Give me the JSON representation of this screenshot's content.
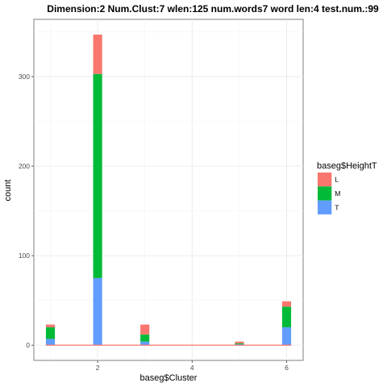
{
  "chart_data": {
    "type": "bar",
    "stacked": true,
    "title": "Dimension:2  Num.Clust:7  wlen:125  num.words7  word len:4  test.num.:99",
    "xlabel": "baseg$Cluster",
    "ylabel": "count",
    "xlim": [
      0.65,
      6.35
    ],
    "ylim": [
      -17,
      364
    ],
    "x_ticks": [
      2,
      4,
      6
    ],
    "y_ticks": [
      0,
      100,
      200,
      300
    ],
    "grid": true,
    "legend_position": "right",
    "legend_title": "baseg$HeightT",
    "bar_width": 0.19,
    "x": [
      1,
      2,
      3,
      5,
      6
    ],
    "series": [
      {
        "name": "T",
        "color": "#619CFF",
        "values": [
          7,
          75,
          4,
          1,
          20
        ]
      },
      {
        "name": "M",
        "color": "#00BA38",
        "values": [
          13,
          228,
          8,
          1,
          23
        ]
      },
      {
        "name": "L",
        "color": "#F8766D",
        "values": [
          3,
          44,
          11,
          2,
          6
        ]
      }
    ],
    "legend_order": [
      "L",
      "M",
      "T"
    ],
    "baseline_color": "#F8766D",
    "baseline_range": [
      0.9,
      6.1
    ]
  }
}
